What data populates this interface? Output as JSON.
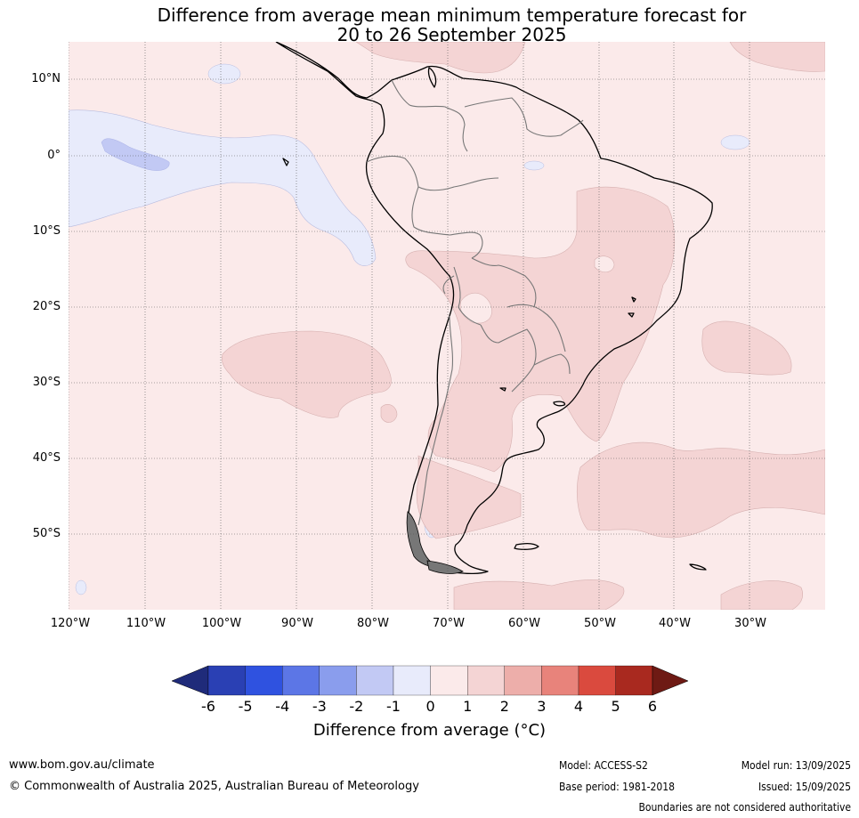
{
  "title": {
    "line1": "Difference from average mean minimum temperature forecast for",
    "line2": "20 to 26 September 2025"
  },
  "map": {
    "lat_labels": [
      "10°N",
      "0°",
      "10°S",
      "20°S",
      "30°S",
      "40°S",
      "50°S"
    ],
    "lon_labels": [
      "120°W",
      "110°W",
      "100°W",
      "90°W",
      "80°W",
      "70°W",
      "60°W",
      "50°W",
      "40°W",
      "30°W"
    ],
    "extent": {
      "lon_min": -120,
      "lon_max": -20,
      "lat_min": -60,
      "lat_max": 15
    }
  },
  "colorbar": {
    "ticks": [
      "-6",
      "-5",
      "-4",
      "-3",
      "-2",
      "-1",
      "0",
      "1",
      "2",
      "3",
      "4",
      "5",
      "6"
    ],
    "colors": [
      "#1f2b7a",
      "#2a40b4",
      "#2f52e0",
      "#5c76e6",
      "#8a9ded",
      "#c2c9f4",
      "#e8ebfb",
      "#fbeaea",
      "#f4d4d4",
      "#edaeaa",
      "#e8837b",
      "#da4a3e",
      "#a9291f",
      "#6e1a14"
    ],
    "label": "Difference from average (°C)"
  },
  "footer": {
    "website": "www.bom.gov.au/climate",
    "copyright": "© Commonwealth of Australia 2025, Australian Bureau of Meteorology",
    "model": "Model: ACCESS-S2",
    "base_period": "Base period: 1981-2018",
    "model_run": "Model run: 13/09/2025",
    "issued": "Issued: 15/09/2025",
    "disclaimer": "Boundaries are not considered authoritative"
  }
}
